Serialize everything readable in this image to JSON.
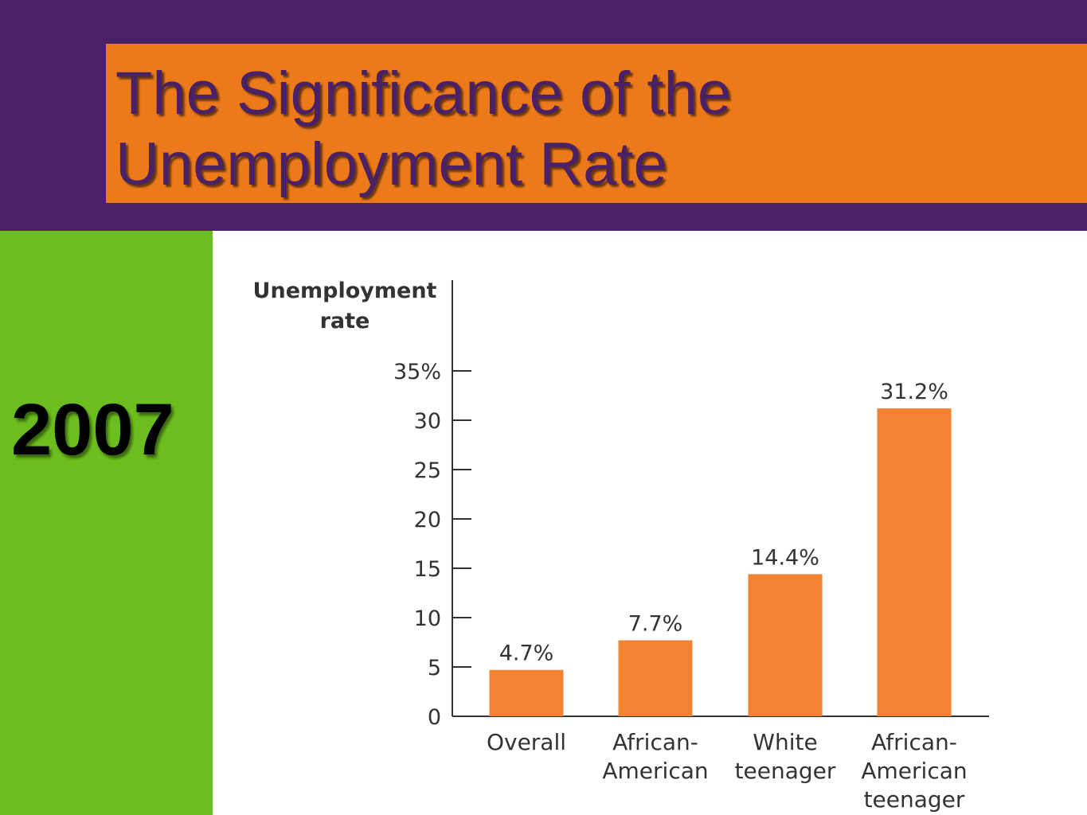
{
  "header": {
    "title_line_1": "The Significance of the",
    "title_line_2": "Unemployment Rate"
  },
  "side": {
    "year": "2007"
  },
  "colors": {
    "header_background": "#4a2066",
    "title_box": "#ec7a1a",
    "side_panel": "#6cbe1e",
    "bar_fill": "#f38232"
  },
  "chart_data": {
    "type": "bar",
    "ylabel_lines": [
      "Unemployment",
      "rate"
    ],
    "categories": [
      [
        "Overall"
      ],
      [
        "African-",
        "American"
      ],
      [
        "White",
        "teenager"
      ],
      [
        "African-",
        "American",
        "teenager"
      ]
    ],
    "values": [
      4.7,
      7.7,
      14.4,
      31.2
    ],
    "value_labels": [
      "4.7%",
      "7.7%",
      "14.4%",
      "31.2%"
    ],
    "yticks": [
      0,
      5,
      10,
      15,
      20,
      25,
      30,
      35
    ],
    "ytick_labels": [
      "0",
      "5",
      "10",
      "15",
      "20",
      "25",
      "30",
      "35%"
    ],
    "ylim": [
      0,
      35
    ],
    "grid": false
  }
}
